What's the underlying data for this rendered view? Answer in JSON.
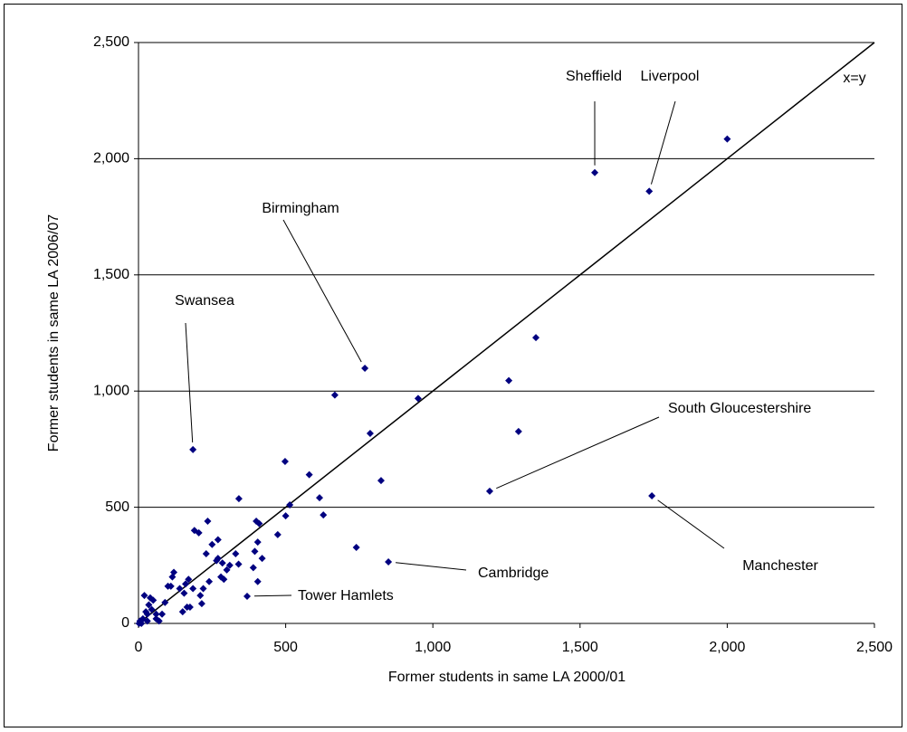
{
  "chart_data": {
    "type": "scatter",
    "x_label": "Former students in same LA 2000/01",
    "y_label": "Former students in same LA 2006/07",
    "color": "#000080",
    "grid": true,
    "reference_line": {
      "label": "x=y"
    },
    "x": [
      1550,
      1735,
      2000,
      769,
      185,
      1193,
      1744,
      849,
      369,
      1350,
      1258,
      1291,
      950,
      667,
      787,
      824,
      740,
      498,
      580,
      615,
      628,
      514,
      500,
      473,
      341,
      400,
      410,
      405,
      395,
      420,
      390,
      405,
      330,
      340,
      310,
      285,
      270,
      250,
      235,
      230,
      240,
      220,
      210,
      205,
      190,
      185,
      170,
      160,
      155,
      150,
      165,
      140,
      120,
      115,
      110,
      90,
      70,
      60,
      50,
      45,
      40,
      35,
      30,
      25,
      20,
      15,
      10,
      5,
      2,
      30,
      60,
      80,
      100,
      270,
      280,
      290,
      300,
      265,
      175,
      215
    ],
    "y": [
      1940,
      1860,
      2085,
      1098,
      748,
      569,
      549,
      265,
      117,
      1230,
      1045,
      826,
      968,
      983,
      818,
      615,
      327,
      697,
      640,
      541,
      467,
      510,
      463,
      382,
      537,
      440,
      430,
      350,
      310,
      280,
      240,
      180,
      300,
      255,
      250,
      260,
      360,
      340,
      440,
      300,
      180,
      150,
      120,
      390,
      400,
      150,
      190,
      170,
      130,
      50,
      70,
      150,
      220,
      200,
      160,
      90,
      10,
      40,
      100,
      60,
      110,
      80,
      40,
      50,
      120,
      20,
      0,
      10,
      0,
      10,
      20,
      40,
      160,
      280,
      200,
      190,
      230,
      270,
      70,
      85
    ],
    "annotations": [
      {
        "text": "Sheffield",
        "point": 0
      },
      {
        "text": "Liverpool",
        "point": 1
      },
      {
        "text": "Birmingham",
        "point": 3
      },
      {
        "text": "Swansea",
        "point": 4
      },
      {
        "text": "South Gloucestershire",
        "point": 5
      },
      {
        "text": "Manchester",
        "point": 6
      },
      {
        "text": "Cambridge",
        "point": 7
      },
      {
        "text": "Tower Hamlets",
        "point": 8
      }
    ],
    "xlim": [
      0,
      2500
    ],
    "ylim": [
      0,
      2500
    ],
    "xticks": [
      0,
      500,
      {
        "value": 1000,
        "label": "1,000"
      },
      {
        "value": 1500,
        "label": "1,500"
      },
      {
        "value": 2000,
        "label": "2,000"
      },
      {
        "value": 2500,
        "label": "2,500"
      }
    ],
    "yticks": [
      0,
      500,
      {
        "value": 1000,
        "label": "1,000"
      },
      {
        "value": 1500,
        "label": "1,500"
      },
      {
        "value": 2000,
        "label": "2,000"
      },
      {
        "value": 2500,
        "label": "2,500"
      }
    ]
  }
}
